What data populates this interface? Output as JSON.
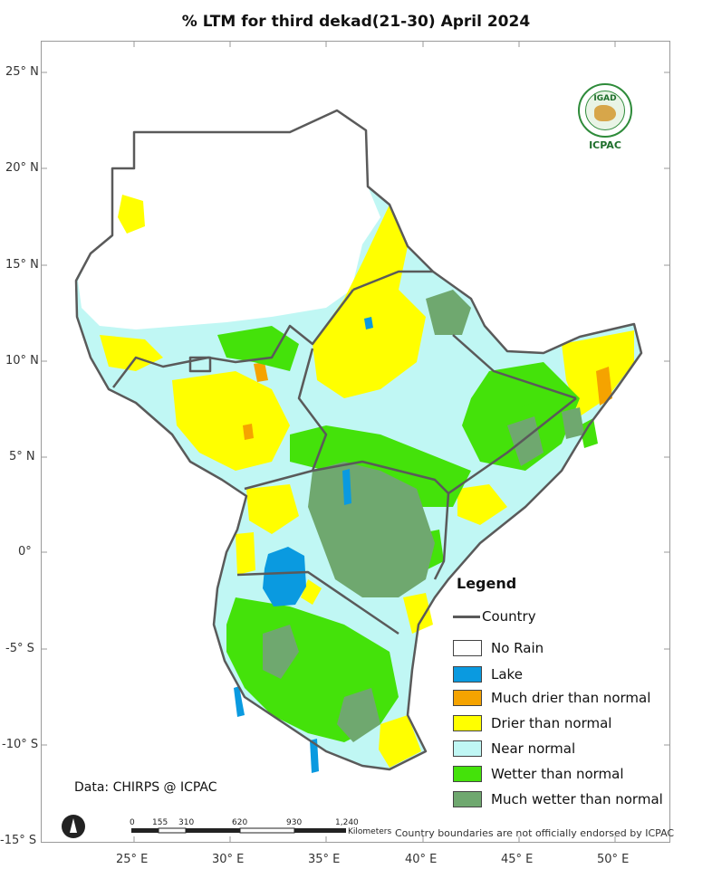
{
  "title": "% LTM  for third dekad(21-30) April 2024",
  "lat_ticks": [
    "25° N",
    "20° N",
    "15° N",
    "10° N",
    "5° N",
    "0°",
    "-5° S",
    "-10° S",
    "-15° S"
  ],
  "lon_ticks": [
    "25° E",
    "30° E",
    "35° E",
    "40° E",
    "45° E",
    "50° E"
  ],
  "legend": {
    "title": "Legend",
    "country_label": "Country",
    "items": [
      {
        "label": "No Rain",
        "color": "#ffffff"
      },
      {
        "label": "Lake",
        "color": "#0a9ae0"
      },
      {
        "label": "Much drier than normal",
        "color": "#f5a300"
      },
      {
        "label": "Drier than normal",
        "color": "#ffff00"
      },
      {
        "label": "Near normal",
        "color": "#c0f7f4"
      },
      {
        "label": "Wetter than normal",
        "color": "#44e20a"
      },
      {
        "label": "Much wetter than normal",
        "color": "#6fa86f"
      }
    ]
  },
  "credit": "Data: CHIRPS @ ICPAC",
  "disclaimer": "Country boundaries are not officially endorsed by ICPAC",
  "scale": {
    "labels": [
      "0",
      "155",
      "310",
      "620",
      "930",
      "1,240"
    ],
    "unit": "Kilometers"
  },
  "logo": {
    "top_text": "IGAD",
    "bottom_text": "ICPAC"
  },
  "colors": {
    "border": "#5a5a5a",
    "grid_tick": "#9a9a9a"
  }
}
